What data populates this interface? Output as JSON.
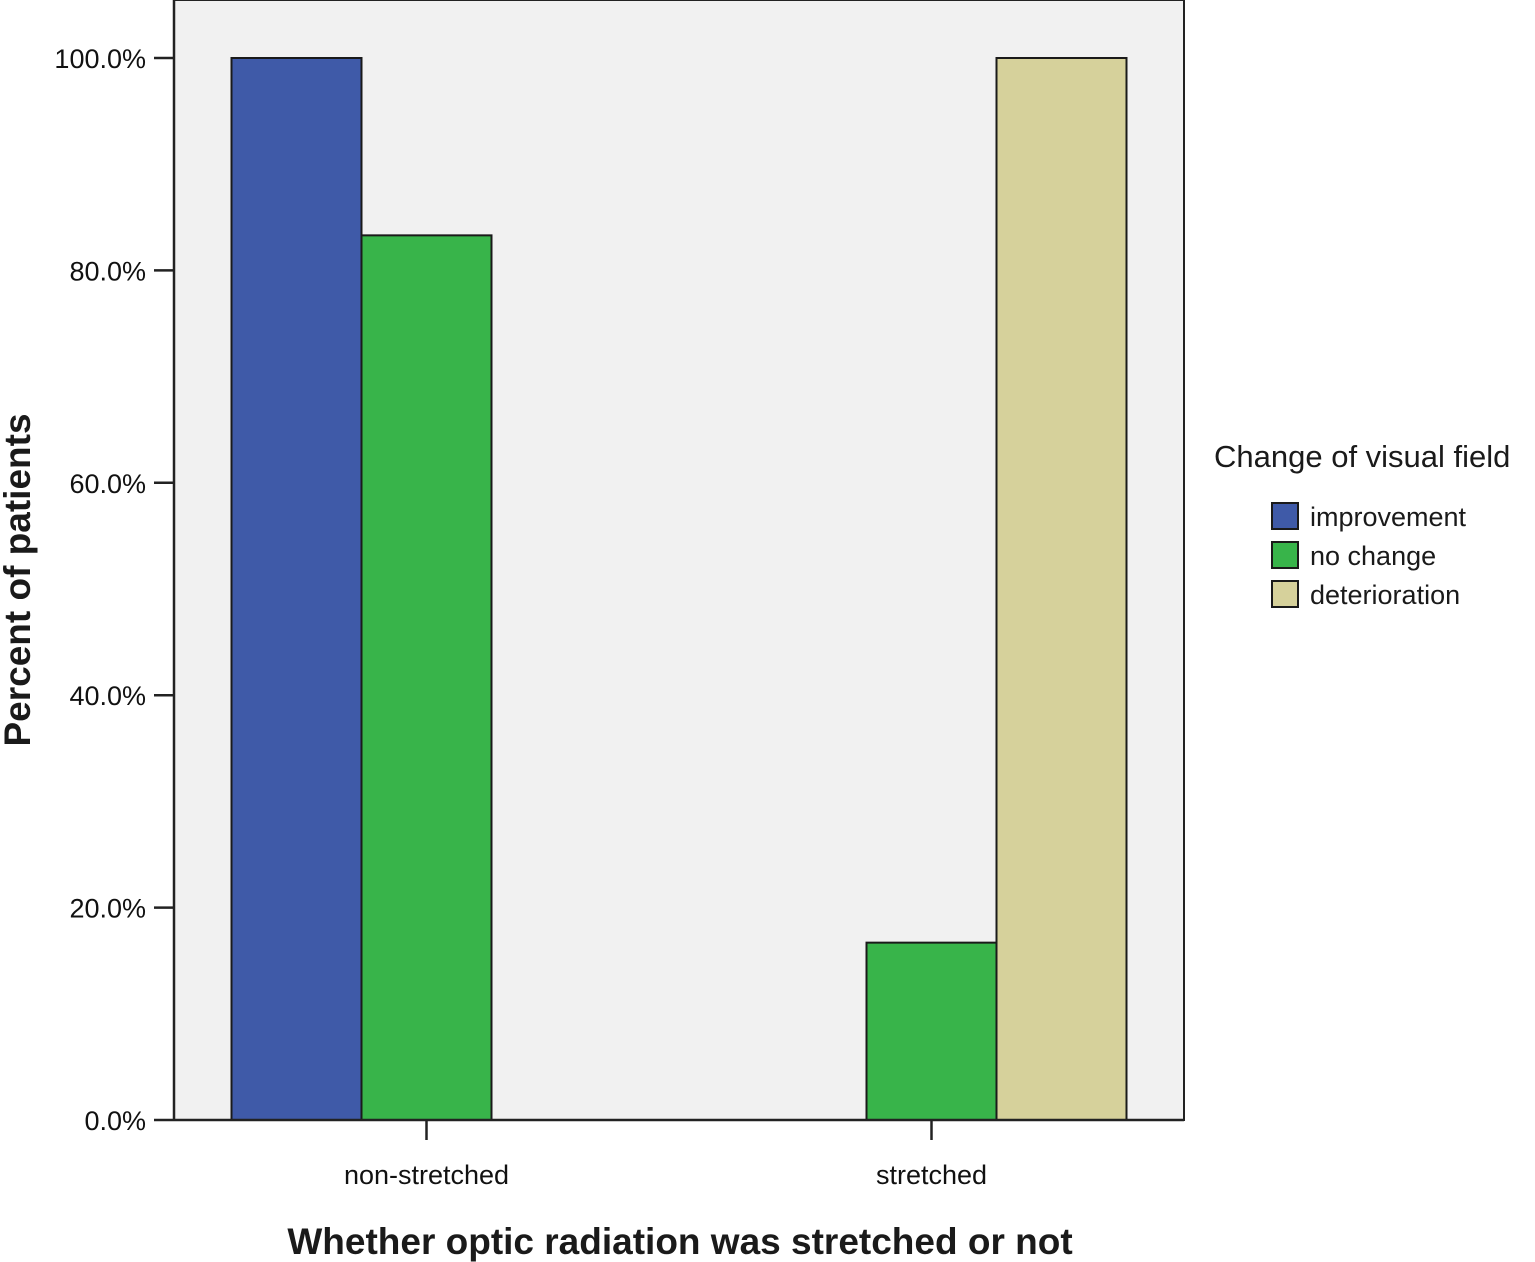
{
  "chart_data": {
    "type": "bar",
    "xlabel": "Whether optic radiation was stretched or not",
    "ylabel": "Percent of patients",
    "categories": [
      "non-stretched",
      "stretched"
    ],
    "y_ticks": [
      "0.0%",
      "20.0%",
      "40.0%",
      "60.0%",
      "80.0%",
      "100.0%"
    ],
    "ylim": [
      0,
      100
    ],
    "grid": false,
    "legend": {
      "title": "Change of visual field",
      "placement": "right"
    },
    "series": [
      {
        "name": "improvement",
        "color": "#3f5aa8",
        "values": [
          100.0,
          0.0
        ]
      },
      {
        "name": "no change",
        "color": "#38b44a",
        "values": [
          83.3,
          16.7
        ]
      },
      {
        "name": "deterioration",
        "color": "#d6d19b",
        "values": [
          0.0,
          100.0
        ]
      }
    ]
  }
}
